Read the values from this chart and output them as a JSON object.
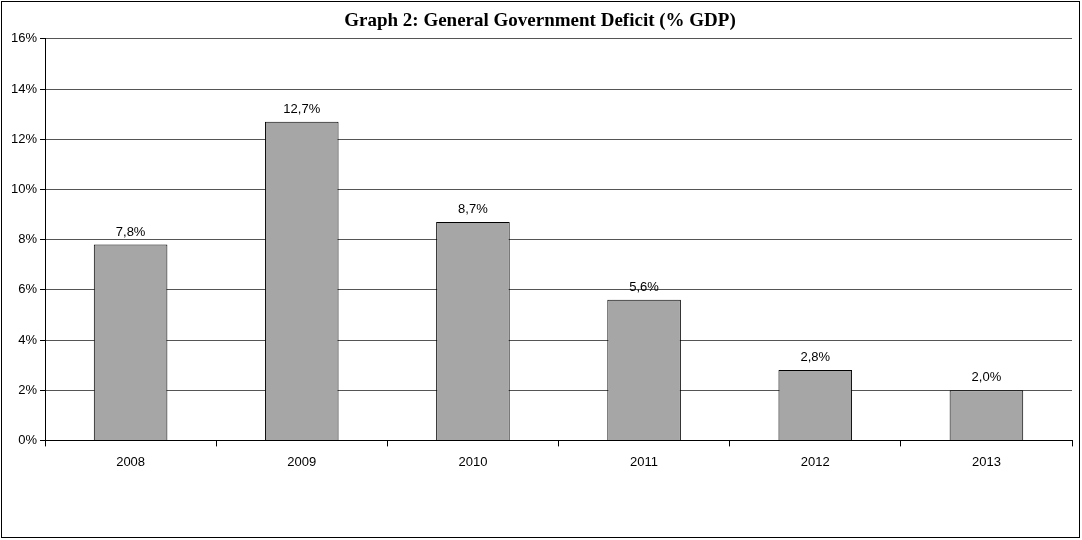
{
  "chart_data": {
    "type": "bar",
    "title": "Graph 2: General Government Deficit (% GDP)",
    "categories": [
      "2008",
      "2009",
      "2010",
      "2011",
      "2012",
      "2013"
    ],
    "values": [
      7.8,
      12.7,
      8.7,
      5.6,
      2.8,
      2.0
    ],
    "value_labels": [
      "7,8%",
      "12,7%",
      "8,7%",
      "5,6%",
      "2,8%",
      "2,0%"
    ],
    "color": "#a6a6a6",
    "ylim": [
      0,
      16
    ],
    "yticks": [
      {
        "value": 0,
        "label": "0%"
      },
      {
        "value": 2,
        "label": "2%"
      },
      {
        "value": 4,
        "label": "4%"
      },
      {
        "value": 6,
        "label": "6%"
      },
      {
        "value": 8,
        "label": "8%"
      },
      {
        "value": 10,
        "label": "10%"
      },
      {
        "value": 12,
        "label": "12%"
      },
      {
        "value": 14,
        "label": "14%"
      },
      {
        "value": 16,
        "label": "16%"
      }
    ],
    "grid": "y",
    "legend": false
  }
}
